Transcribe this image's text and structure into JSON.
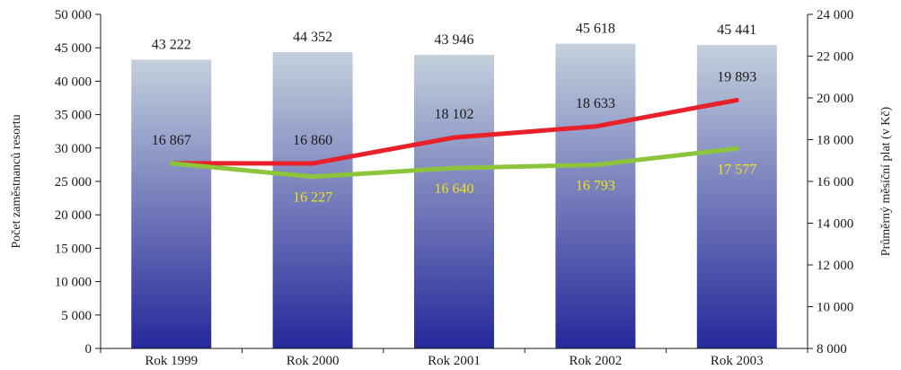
{
  "chart_data": {
    "type": "bar",
    "categories": [
      "Rok 1999",
      "Rok 2000",
      "Rok 2001",
      "Rok 2002",
      "Rok 2003"
    ],
    "series": [
      {
        "kind": "bar",
        "axis": "left",
        "values": [
          43222,
          44352,
          43946,
          45618,
          45441
        ],
        "labels": [
          "43 222",
          "44 352",
          "43 946",
          "45 618",
          "45 441"
        ],
        "label_color": "#1a1a1a"
      },
      {
        "kind": "line",
        "axis": "right",
        "color": "#e8202a",
        "values": [
          16867,
          16860,
          18102,
          18633,
          19893
        ],
        "labels": [
          "16 867",
          "16 860",
          "18 102",
          "18 633",
          "19 893"
        ],
        "label_color": "#1a1a1a"
      },
      {
        "kind": "line",
        "axis": "right",
        "color": "#8cc43c",
        "values": [
          16867,
          16227,
          16640,
          16793,
          17577
        ],
        "labels": [
          "",
          "16 227",
          "16 640",
          "16 793",
          "17 577"
        ],
        "label_color": "#f2e21a"
      }
    ],
    "ylabel": "Počet zaměstnanců resortu",
    "y2label": "Průměrný měsíční plat (v Kč)",
    "ylim": [
      0,
      50000
    ],
    "y2lim": [
      8000,
      24000
    ],
    "yticks": [
      "0",
      "5 000",
      "10 000",
      "15 000",
      "20 000",
      "25 000",
      "30 000",
      "35 000",
      "40 000",
      "45 000",
      "50 000"
    ],
    "y2ticks": [
      "8 000",
      "10 000",
      "12 000",
      "14 000",
      "16 000",
      "18 000",
      "20 000",
      "22 000",
      "24 000"
    ],
    "grid": false,
    "bar_gradient": [
      "#c4d0dc",
      "#25289a"
    ]
  }
}
